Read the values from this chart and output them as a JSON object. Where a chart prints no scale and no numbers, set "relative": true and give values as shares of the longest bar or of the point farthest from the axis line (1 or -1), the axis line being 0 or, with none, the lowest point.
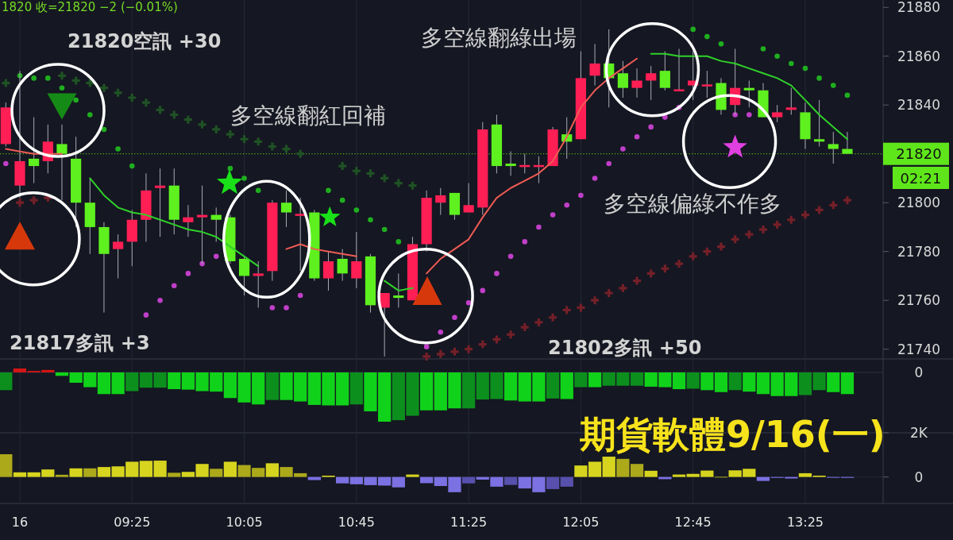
{
  "chart_data": [
    {
      "type": "candlestick",
      "categories": [
        null,
        null,
        null,
        null,
        null,
        null,
        null,
        null,
        null,
        null,
        null,
        null,
        null,
        null,
        null,
        null,
        null,
        null,
        null,
        null,
        null,
        null,
        null,
        null,
        null,
        null,
        null,
        null,
        null,
        null,
        null,
        null,
        null,
        null,
        null,
        null,
        null,
        null,
        null,
        null,
        null,
        null,
        null,
        null,
        null,
        null,
        null,
        null,
        null,
        null,
        null,
        null,
        null,
        null,
        null,
        null,
        null,
        null,
        null,
        null,
        null
      ],
      "ohlc": [
        [
          21824,
          21841,
          21823,
          21839
        ],
        [
          21807,
          21854,
          21802,
          21817
        ],
        [
          21818,
          21835,
          21808,
          21815
        ],
        [
          21817,
          21832,
          21812,
          21825
        ],
        [
          21824,
          21832,
          21801,
          21820
        ],
        [
          21818,
          21827,
          21790,
          21800
        ],
        [
          21800,
          21810,
          21779,
          21790
        ],
        [
          21790,
          21792,
          21755,
          21779
        ],
        [
          21781,
          21787,
          21769,
          21784
        ],
        [
          21784,
          21797,
          21774,
          21793
        ],
        [
          21793,
          21812,
          21784,
          21805
        ],
        [
          21806,
          21814,
          21786,
          21807
        ],
        [
          21807,
          21814,
          21787,
          21793
        ],
        [
          21792,
          21799,
          21786,
          21794
        ],
        [
          21794,
          21807,
          21775,
          21795
        ],
        [
          21795,
          21798,
          21784,
          21793
        ],
        [
          21794,
          21795,
          21775,
          21776
        ],
        [
          21777,
          21778,
          21762,
          21770
        ],
        [
          21770,
          21776,
          21757,
          21771
        ],
        [
          21772,
          21801,
          21768,
          21800
        ],
        [
          21800,
          21805,
          21790,
          21796
        ],
        [
          21795,
          21802,
          21772,
          21795
        ],
        [
          21796,
          21797,
          21768,
          21769
        ],
        [
          21769,
          21780,
          21764,
          21776
        ],
        [
          21777,
          21781,
          21768,
          21771
        ],
        [
          21769,
          21788,
          21765,
          21776
        ],
        [
          21778,
          21779,
          21755,
          21758
        ],
        [
          21757,
          21763,
          21737,
          21763
        ],
        [
          21762,
          21771,
          21757,
          21761
        ],
        [
          21760,
          21786,
          21760,
          21783
        ],
        [
          21783,
          21805,
          21780,
          21802
        ],
        [
          21800,
          21806,
          21795,
          21803
        ],
        [
          21804,
          21804,
          21793,
          21795
        ],
        [
          21796,
          21808,
          21796,
          21799
        ],
        [
          21798,
          21833,
          21795,
          21830
        ],
        [
          21832,
          21836,
          21812,
          21815
        ],
        [
          21816,
          21821,
          21811,
          21815
        ],
        [
          21815,
          21820,
          21812,
          21815
        ],
        [
          21815,
          21819,
          21808,
          21815
        ],
        [
          21815,
          21831,
          21815,
          21830
        ],
        [
          21828,
          21835,
          21818,
          21825
        ],
        [
          21826,
          21862,
          21826,
          21851
        ],
        [
          21852,
          21865,
          21848,
          21857
        ],
        [
          21857,
          21871,
          21839,
          21851
        ],
        [
          21853,
          21858,
          21843,
          21847
        ],
        [
          21847,
          21855,
          21843,
          21850
        ],
        [
          21850,
          21856,
          21842,
          21853
        ],
        [
          21854,
          21862,
          21846,
          21847
        ],
        [
          21846,
          21863,
          21846,
          21846
        ],
        [
          21848,
          21862,
          21842,
          21850
        ],
        [
          21848,
          21854,
          21843,
          21848
        ],
        [
          21849,
          21851,
          21836,
          21838
        ],
        [
          21840,
          21863,
          21836,
          21847
        ],
        [
          21847,
          21850,
          21839,
          21846
        ],
        [
          21846,
          21849,
          21835,
          21835
        ],
        [
          21835,
          21840,
          21833,
          21837
        ],
        [
          21838,
          21847,
          21836,
          21839
        ],
        [
          21837,
          21841,
          21822,
          21826
        ],
        [
          21826,
          21842,
          21823,
          21825
        ],
        [
          21824,
          21829,
          21816,
          21822
        ],
        [
          21822,
          21829,
          21820,
          21820
        ]
      ],
      "colors": [
        "#ff1f55",
        "#ff1f55",
        "#5ef01f",
        "#ff1f55",
        "#5ef01f",
        "#5ef01f",
        "#5ef01f",
        "#5ef01f",
        "#ff1f55",
        "#ff1f55",
        "#ff1f55",
        "#ff1f55",
        "#5ef01f",
        "#ff1f55",
        "#ff1f55",
        "#5ef01f",
        "#5ef01f",
        "#5ef01f",
        "#ff1f55",
        "#ff1f55",
        "#5ef01f",
        "#ff1f55",
        "#5ef01f",
        "#ff1f55",
        "#5ef01f",
        "#ff1f55",
        "#5ef01f",
        "#ff1f55",
        "#5ef01f",
        "#ff1f55",
        "#ff1f55",
        "#ff1f55",
        "#5ef01f",
        "#ff1f55",
        "#ff1f55",
        "#5ef01f",
        "#5ef01f",
        "#ff1f55",
        "#ff1f55",
        "#ff1f55",
        "#5ef01f",
        "#ff1f55",
        "#ff1f55",
        "#5ef01f",
        "#5ef01f",
        "#ff1f55",
        "#ff1f55",
        "#5ef01f",
        "#ff1f55",
        "#ff1f55",
        "#ff1f55",
        "#5ef01f",
        "#ff1f55",
        "#5ef01f",
        "#5ef01f",
        "#ff1f55",
        "#ff1f55",
        "#5ef01f",
        "#5ef01f",
        "#5ef01f",
        "#5ef01f"
      ],
      "series": [
        {
          "type": "line",
          "color": "#ef5b55",
          "values": [
            21822,
            21821,
            21820,
            21820,
            21820,
            null,
            null,
            null,
            null,
            null,
            null,
            null,
            null,
            null,
            null,
            null,
            null,
            null,
            null,
            null,
            21781,
            21783,
            21781,
            21780,
            21779,
            21778,
            null,
            null,
            null,
            null,
            21771,
            21777,
            21781,
            21785,
            21794,
            21802,
            21806,
            21809,
            21812,
            21817,
            21827,
            21839,
            21846,
            21851,
            21855,
            21859,
            null,
            null,
            null,
            null,
            null,
            null,
            null,
            null,
            null,
            null,
            null,
            null,
            null,
            null,
            null
          ]
        },
        {
          "type": "line",
          "color": "#2fd12a",
          "values": [
            null,
            null,
            null,
            null,
            null,
            null,
            21810,
            21803,
            21798,
            21796,
            21795,
            21793,
            21791,
            21789,
            21788,
            21786,
            21782,
            21778,
            21774,
            null,
            null,
            null,
            null,
            null,
            null,
            null,
            null,
            21768,
            21764,
            21765,
            null,
            null,
            null,
            null,
            null,
            null,
            null,
            null,
            null,
            null,
            null,
            null,
            null,
            null,
            null,
            null,
            21861,
            21861,
            21860,
            21860,
            21860,
            21858,
            21857,
            21855,
            21853,
            21851,
            21848,
            21842,
            21836,
            21831,
            21826
          ]
        },
        {
          "type": "scatter",
          "marker": "circle",
          "color": "#1fae1f",
          "values": [
            null,
            21852,
            21851,
            21851,
            21847,
            21842,
            21836,
            21830,
            21822,
            21815,
            null,
            null,
            null,
            null,
            null,
            null,
            21814,
            21810,
            21805,
            null,
            null,
            null,
            null,
            21805,
            21801,
            21797,
            21793,
            21789,
            21784,
            null,
            null,
            null,
            null,
            null,
            null,
            null,
            null,
            null,
            null,
            null,
            null,
            null,
            null,
            null,
            null,
            null,
            null,
            null,
            null,
            21871,
            21868,
            21865,
            null,
            null,
            21863,
            21860,
            21857,
            21855,
            21851,
            21848,
            21844
          ]
        },
        {
          "type": "scatter",
          "marker": "circle",
          "color": "#c03fc9",
          "values": [
            21816,
            null,
            null,
            null,
            null,
            null,
            null,
            null,
            null,
            null,
            21754,
            21760,
            21766,
            21771,
            21775,
            21778,
            null,
            null,
            null,
            21757,
            21757,
            21762,
            null,
            null,
            null,
            null,
            null,
            null,
            null,
            null,
            21741,
            21747,
            21753,
            21759,
            21764,
            21771,
            21778,
            21784,
            21790,
            21795,
            21799,
            21803,
            21810,
            21816,
            21822,
            21827,
            21831,
            21835,
            21839,
            null,
            null,
            null,
            21836,
            21836,
            null,
            null,
            null,
            null,
            null,
            null,
            null
          ]
        },
        {
          "type": "scatter",
          "marker": "cross",
          "color": "#1f5224",
          "values": [
            21849,
            null,
            null,
            null,
            21852,
            21850,
            21849,
            21847,
            21845,
            21843,
            21841,
            21838,
            21836,
            21834,
            21832,
            21830,
            21828,
            21826,
            21825,
            21823,
            21822,
            21820,
            null,
            null,
            21815,
            21813,
            21812,
            21810,
            21808,
            21807,
            null,
            null,
            null,
            null,
            null,
            null,
            null,
            null,
            null,
            null,
            null,
            null,
            null,
            null,
            null,
            null,
            null,
            null,
            null,
            null,
            null,
            null,
            null,
            null,
            null,
            null,
            null,
            null,
            null,
            null,
            null
          ]
        },
        {
          "type": "scatter",
          "marker": "cross",
          "color": "#742029",
          "values": [
            null,
            21800,
            21801,
            21802,
            null,
            null,
            null,
            null,
            null,
            null,
            null,
            null,
            null,
            null,
            null,
            null,
            null,
            null,
            null,
            null,
            null,
            null,
            null,
            null,
            null,
            null,
            null,
            null,
            null,
            null,
            21737,
            21738,
            21739,
            21740,
            21742,
            21744,
            21746,
            21749,
            21751,
            21753,
            21756,
            21757,
            21760,
            21763,
            21765,
            21768,
            21771,
            21773,
            21775,
            21778,
            21780,
            21782,
            21785,
            21787,
            21789,
            21791,
            21793,
            21795,
            21797,
            21799,
            21801
          ]
        }
      ],
      "ylim": [
        21736,
        21883
      ],
      "yticks": [
        21740,
        21760,
        21780,
        21800,
        21840,
        21860,
        21880
      ],
      "ref_lines": [
        {
          "axis": "y",
          "value": 21820,
          "label": "21820",
          "color": "#5fe61b",
          "line_style": "dotted"
        }
      ],
      "annotations": [
        "1820 收=21820 −2 (−0.01%)",
        "21820空訊 +30",
        "21817多訊 +3",
        "多空線翻紅回補",
        "21802多訊 +50",
        "多空線翻綠出場",
        "多空線偏綠不作多",
        "02:21"
      ]
    },
    {
      "type": "bar",
      "relative": true,
      "categories": [
        null,
        null,
        null,
        null,
        null,
        null,
        null,
        null,
        null,
        null,
        null,
        null,
        null,
        null,
        null,
        null,
        null,
        null,
        null,
        null,
        null,
        null,
        null,
        null,
        null,
        null,
        null,
        null,
        null,
        null,
        null,
        null,
        null,
        null,
        null,
        null,
        null,
        null,
        null,
        null,
        null,
        null,
        null,
        null,
        null,
        null,
        null,
        null,
        null,
        null,
        null,
        null,
        null,
        null,
        null,
        null,
        null,
        null,
        null,
        null,
        null
      ],
      "values": [
        -0.36,
        0.08,
        0.03,
        0.05,
        -0.07,
        -0.21,
        -0.3,
        -0.44,
        -0.44,
        -0.38,
        -0.31,
        -0.31,
        -0.34,
        -0.35,
        -0.38,
        -0.39,
        -0.52,
        -0.61,
        -0.65,
        -0.56,
        -0.56,
        -0.59,
        -0.66,
        -0.67,
        -0.67,
        -0.65,
        -0.79,
        -1,
        -0.97,
        -0.88,
        -0.77,
        -0.77,
        -0.73,
        -0.73,
        -0.55,
        -0.54,
        -0.57,
        -0.59,
        -0.59,
        -0.53,
        -0.54,
        -0.3,
        -0.3,
        -0.27,
        -0.27,
        -0.27,
        -0.29,
        -0.3,
        -0.34,
        -0.33,
        -0.36,
        -0.4,
        -0.36,
        -0.39,
        -0.44,
        -0.48,
        -0.48,
        -0.46,
        -0.36,
        -0.4,
        -0.44
      ],
      "colors": [
        "#0c8f1d",
        "#d41515",
        "#d41515",
        "#d41515",
        "#10d21a",
        "#10d21a",
        "#10d21a",
        "#10d21a",
        "#10d21a",
        "#0c8f1d",
        "#0c8f1d",
        "#0c8f1d",
        "#10d21a",
        "#10d21a",
        "#10d21a",
        "#10d21a",
        "#10d21a",
        "#10d21a",
        "#10d21a",
        "#0c8f1d",
        "#10d21a",
        "#10d21a",
        "#10d21a",
        "#10d21a",
        "#10d21a",
        "#0c8f1d",
        "#10d21a",
        "#10d21a",
        "#0c8f1d",
        "#0c8f1d",
        "#10d21a",
        "#10d21a",
        "#10d21a",
        "#0c8f1d",
        "#0c8f1d",
        "#0c8f1d",
        "#10d21a",
        "#10d21a",
        "#10d21a",
        "#0c8f1d",
        "#10d21a",
        "#0c8f1d",
        "#10d21a",
        "#0c8f1d",
        "#0c8f1d",
        "#0c8f1d",
        "#10d21a",
        "#10d21a",
        "#10d21a",
        "#0c8f1d",
        "#10d21a",
        "#10d21a",
        "#0c8f1d",
        "#10d21a",
        "#10d21a",
        "#10d21a",
        "#10d21a",
        "#0c8f1d",
        "#0c8f1d",
        "#10d21a",
        "#10d21a"
      ],
      "ref_lines": [
        {
          "axis": "y",
          "value": 0,
          "label": "0",
          "color": "#2e3240"
        }
      ],
      "annotations": [
        "期貨軟體9/16(一)"
      ]
    },
    {
      "type": "bar",
      "categories": [
        null,
        "16",
        null,
        null,
        null,
        null,
        null,
        null,
        null,
        "09:25",
        null,
        null,
        null,
        null,
        null,
        null,
        null,
        "10:05",
        null,
        null,
        null,
        null,
        null,
        null,
        null,
        "10:45",
        null,
        null,
        null,
        null,
        null,
        null,
        null,
        "11:25",
        null,
        null,
        null,
        null,
        null,
        null,
        null,
        "12:05",
        null,
        null,
        null,
        null,
        null,
        null,
        null,
        "12:45",
        null,
        null,
        null,
        null,
        null,
        null,
        null,
        "13:25",
        null,
        null,
        null
      ],
      "values": [
        1030,
        210,
        210,
        340,
        100,
        390,
        390,
        450,
        480,
        690,
        730,
        740,
        190,
        230,
        590,
        370,
        690,
        540,
        410,
        620,
        450,
        170,
        -140,
        60,
        -290,
        -330,
        -370,
        -390,
        -470,
        110,
        -280,
        -410,
        -690,
        -290,
        -120,
        -440,
        -360,
        -520,
        -690,
        -550,
        -440,
        520,
        690,
        920,
        820,
        590,
        280,
        -100,
        110,
        140,
        290,
        10,
        300,
        370,
        -180,
        -40,
        -70,
        170,
        60,
        -30,
        -40
      ],
      "colors": [
        "#aca91b",
        "#d6d41e",
        "#d6d41e",
        "#d6d41e",
        "#aca91b",
        "#d6d41e",
        "#aca91b",
        "#d6d41e",
        "#d6d41e",
        "#d6d41e",
        "#d6d41e",
        "#d6d41e",
        "#aca91b",
        "#d6d41e",
        "#d6d41e",
        "#aca91b",
        "#d6d41e",
        "#aca91b",
        "#aca91b",
        "#d6d41e",
        "#aca91b",
        "#aca91b",
        "#7b71e2",
        "#d6d41e",
        "#7b71e2",
        "#7b71e2",
        "#7b71e2",
        "#7b71e2",
        "#7b71e2",
        "#d6d41e",
        "#7b71e2",
        "#7b71e2",
        "#7b71e2",
        "#5850ad",
        "#7b71e2",
        "#7b71e2",
        "#5850ad",
        "#7b71e2",
        "#7b71e2",
        "#5850ad",
        "#5850ad",
        "#d6d41e",
        "#d6d41e",
        "#d6d41e",
        "#aca91b",
        "#aca91b",
        "#d6d41e",
        "#7b71e2",
        "#d6d41e",
        "#d6d41e",
        "#d6d41e",
        "#aca91b",
        "#d6d41e",
        "#d6d41e",
        "#7b71e2",
        "#7b71e2",
        "#7b71e2",
        "#d6d41e",
        "#d6d41e",
        "#7b71e2",
        "#7b71e2"
      ],
      "ylim": [
        -1200,
        2000
      ],
      "yticks": [
        0,
        {
          "value": 2000,
          "label": "2K"
        }
      ],
      "grid": true
    }
  ]
}
